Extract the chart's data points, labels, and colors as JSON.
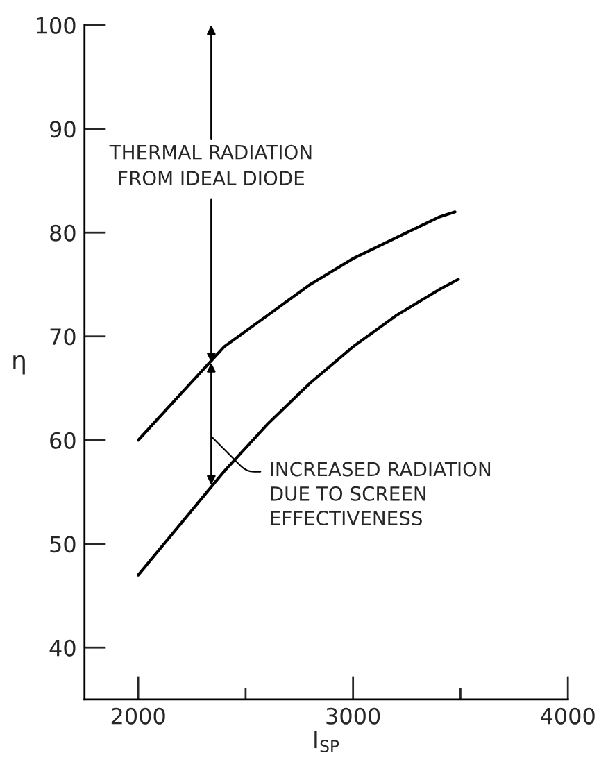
{
  "chart_data": {
    "type": "line",
    "xlabel": "I$_{SP}$",
    "ylabel": "η",
    "series": [
      {
        "color": "#000000",
        "x": [
          2000,
          2200,
          2400,
          2600,
          2800,
          3000,
          3200,
          3400,
          3475
        ],
        "values": [
          60,
          64.5,
          69,
          72,
          75,
          77.5,
          79.5,
          81.5,
          82
        ]
      },
      {
        "color": "#000000",
        "x": [
          2000,
          2200,
          2400,
          2600,
          2800,
          3000,
          3200,
          3400,
          3490
        ],
        "values": [
          47,
          52,
          57,
          61.5,
          65.5,
          69,
          72,
          74.5,
          75.5
        ]
      }
    ],
    "xlim": [
      1750,
      4000
    ],
    "xticks": [
      2000,
      {
        "value": 2500,
        "label": null
      },
      3000,
      {
        "value": 3500,
        "label": null
      },
      4000
    ],
    "ylim": [
      35,
      100
    ],
    "yticks": [
      40,
      50,
      60,
      70,
      80,
      90,
      100
    ],
    "annotations": [
      {
        "text": "THERMAL RADIATION\nFROM IDEAL DIODE",
        "x": 2340,
        "y": 67.5
      },
      "INCREASED RADIATION\nDUE TO SCREEN\nEFFECTIVENESS"
    ],
    "grid": false,
    "marker": "none",
    "line_style": "solid"
  }
}
